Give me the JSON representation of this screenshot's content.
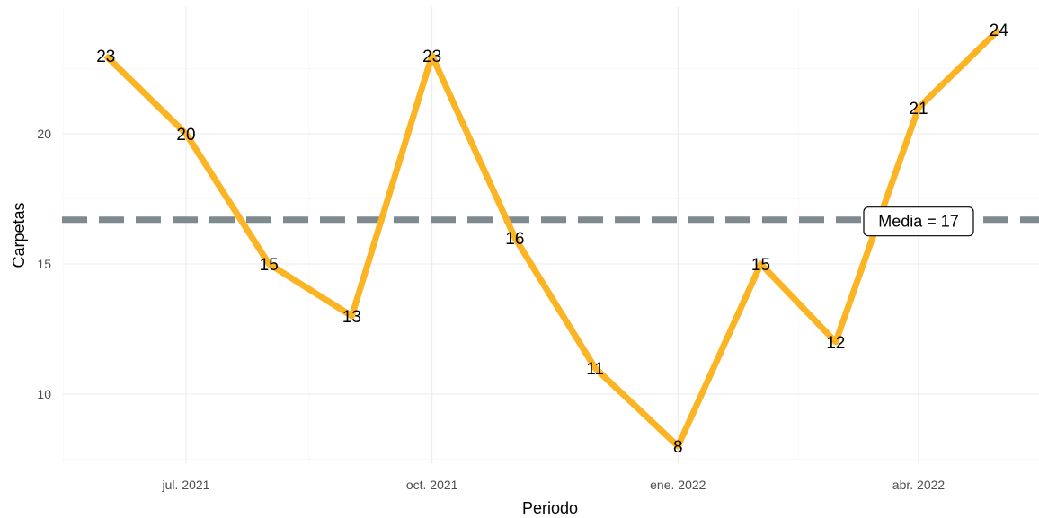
{
  "chart_data": {
    "type": "line",
    "xlabel": "Periodo",
    "ylabel": "Carpetas",
    "x": [
      "2021-06",
      "2021-07",
      "2021-08",
      "2021-09",
      "2021-10",
      "2021-11",
      "2021-12",
      "2022-01",
      "2022-02",
      "2022-03",
      "2022-04",
      "2022-05"
    ],
    "values": [
      23,
      20,
      15,
      13,
      23,
      16,
      11,
      8,
      15,
      12,
      21,
      24
    ],
    "x_ticks": [
      {
        "date": "2021-07",
        "label": "jul. 2021"
      },
      {
        "date": "2021-10",
        "label": "oct. 2021"
      },
      {
        "date": "2022-01",
        "label": "ene. 2022"
      },
      {
        "date": "2022-04",
        "label": "abr. 2022"
      }
    ],
    "y_ticks": [
      10,
      15,
      20
    ],
    "ylim": [
      7.5,
      25
    ],
    "mean": {
      "value": 16.7,
      "label": "Media = 17"
    },
    "line_color": "#fbb423",
    "mean_color": "#7f8a90",
    "grid": true,
    "legend": "none"
  }
}
